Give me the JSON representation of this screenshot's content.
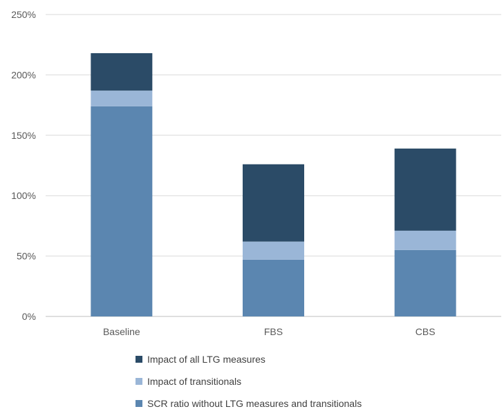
{
  "chart_data": {
    "type": "bar",
    "stacked": true,
    "title": "",
    "xlabel": "",
    "ylabel": "",
    "categories": [
      "Baseline",
      "FBS",
      "CBS"
    ],
    "ylim": [
      0,
      2.5
    ],
    "y_ticks": [
      0,
      0.5,
      1.0,
      1.5,
      2.0,
      2.5
    ],
    "y_tick_labels": [
      "0%",
      "50%",
      "100%",
      "150%",
      "200%",
      "250%"
    ],
    "grid": true,
    "legend_position": "bottom",
    "series": [
      {
        "name": "SCR ratio without LTG measures and transitionals",
        "color": "#5b86b0",
        "values": [
          1.74,
          0.47,
          0.55
        ]
      },
      {
        "name": "Impact of transitionals",
        "color": "#9ab6d7",
        "values": [
          0.13,
          0.15,
          0.16
        ]
      },
      {
        "name": "Impact of all LTG measures",
        "color": "#2b4b67",
        "values": [
          0.31,
          0.64,
          0.68
        ]
      }
    ],
    "legend_order": [
      2,
      1,
      0
    ]
  },
  "legend": {
    "items": [
      {
        "label": "Impact of all LTG measures",
        "color": "#2b4b67"
      },
      {
        "label": "Impact of transitionals",
        "color": "#9ab6d7"
      },
      {
        "label": "SCR ratio without LTG measures and transitionals",
        "color": "#5b86b0"
      }
    ]
  }
}
